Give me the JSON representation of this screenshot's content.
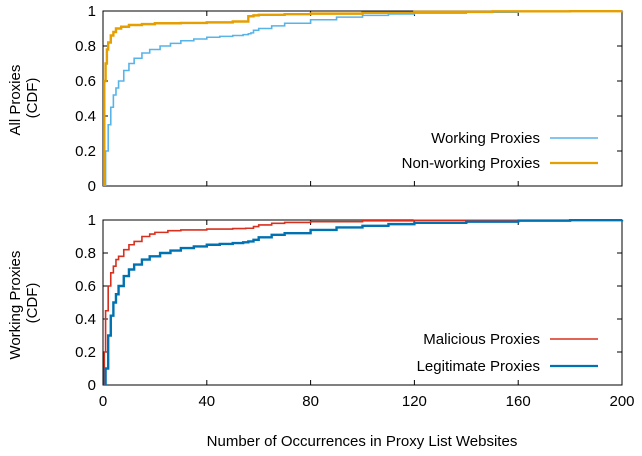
{
  "chart_data": [
    {
      "type": "line",
      "panel": "top",
      "xlabel": "",
      "ylabel_lines": [
        "All Proxies",
        "(CDF)"
      ],
      "xlim": [
        0,
        200
      ],
      "ylim": [
        0,
        1
      ],
      "yticks": [
        "0",
        "0.2",
        "0.4",
        "0.6",
        "0.8",
        "1"
      ],
      "xticks": [],
      "legend_position": "bottom-right",
      "series": [
        {
          "name": "Working Proxies",
          "color": "#56B4E9",
          "points": [
            [
              1,
              0
            ],
            [
              1,
              0.2
            ],
            [
              2,
              0.35
            ],
            [
              3,
              0.45
            ],
            [
              4,
              0.52
            ],
            [
              5,
              0.56
            ],
            [
              6,
              0.6
            ],
            [
              8,
              0.66
            ],
            [
              10,
              0.7
            ],
            [
              12,
              0.73
            ],
            [
              15,
              0.76
            ],
            [
              18,
              0.78
            ],
            [
              22,
              0.8
            ],
            [
              26,
              0.815
            ],
            [
              30,
              0.83
            ],
            [
              35,
              0.84
            ],
            [
              40,
              0.85
            ],
            [
              45,
              0.855
            ],
            [
              50,
              0.86
            ],
            [
              54,
              0.865
            ],
            [
              56,
              0.87
            ],
            [
              57,
              0.875
            ],
            [
              58,
              0.89
            ],
            [
              60,
              0.9
            ],
            [
              65,
              0.915
            ],
            [
              70,
              0.93
            ],
            [
              80,
              0.95
            ],
            [
              90,
              0.965
            ],
            [
              100,
              0.975
            ],
            [
              110,
              0.983
            ],
            [
              120,
              0.988
            ],
            [
              140,
              0.993
            ],
            [
              160,
              0.997
            ],
            [
              180,
              0.999
            ],
            [
              200,
              1.0
            ]
          ]
        },
        {
          "name": "Non-working Proxies",
          "color": "#E69F00",
          "points": [
            [
              0.5,
              0
            ],
            [
              0.5,
              0.6
            ],
            [
              1,
              0.7
            ],
            [
              1.5,
              0.78
            ],
            [
              2,
              0.82
            ],
            [
              3,
              0.86
            ],
            [
              4,
              0.88
            ],
            [
              5,
              0.9
            ],
            [
              7,
              0.91
            ],
            [
              10,
              0.92
            ],
            [
              15,
              0.925
            ],
            [
              20,
              0.93
            ],
            [
              30,
              0.932
            ],
            [
              40,
              0.935
            ],
            [
              50,
              0.94
            ],
            [
              55,
              0.94
            ],
            [
              56,
              0.97
            ],
            [
              58,
              0.975
            ],
            [
              60,
              0.978
            ],
            [
              70,
              0.982
            ],
            [
              80,
              0.985
            ],
            [
              100,
              0.99
            ],
            [
              120,
              0.995
            ],
            [
              150,
              0.998
            ],
            [
              180,
              0.999
            ],
            [
              200,
              1.0
            ]
          ]
        }
      ]
    },
    {
      "type": "line",
      "panel": "bottom",
      "xlabel": "Number of Occurrences in Proxy List Websites",
      "ylabel_lines": [
        "Working Proxies",
        "(CDF)"
      ],
      "xlim": [
        0,
        200
      ],
      "ylim": [
        0,
        1
      ],
      "yticks": [
        "0",
        "0.2",
        "0.4",
        "0.6",
        "0.8",
        "1"
      ],
      "xticks": [
        "0",
        "40",
        "80",
        "120",
        "160",
        "200"
      ],
      "legend_position": "bottom-right",
      "series": [
        {
          "name": "Malicious Proxies",
          "color": "#D7301F",
          "points": [
            [
              0.5,
              0
            ],
            [
              0.5,
              0.2
            ],
            [
              1,
              0.45
            ],
            [
              2,
              0.6
            ],
            [
              3,
              0.68
            ],
            [
              4,
              0.72
            ],
            [
              5,
              0.76
            ],
            [
              6,
              0.78
            ],
            [
              8,
              0.82
            ],
            [
              10,
              0.85
            ],
            [
              12,
              0.87
            ],
            [
              15,
              0.9
            ],
            [
              18,
              0.915
            ],
            [
              20,
              0.925
            ],
            [
              25,
              0.935
            ],
            [
              30,
              0.94
            ],
            [
              40,
              0.945
            ],
            [
              50,
              0.948
            ],
            [
              55,
              0.95
            ],
            [
              58,
              0.96
            ],
            [
              60,
              0.97
            ],
            [
              65,
              0.98
            ],
            [
              70,
              0.985
            ],
            [
              80,
              0.99
            ],
            [
              100,
              0.995
            ],
            [
              120,
              0.998
            ],
            [
              160,
              0.999
            ],
            [
              200,
              1.0
            ]
          ]
        },
        {
          "name": "Legitimate Proxies",
          "color": "#0072B2",
          "points": [
            [
              1,
              0
            ],
            [
              1,
              0.1
            ],
            [
              2,
              0.3
            ],
            [
              3,
              0.42
            ],
            [
              4,
              0.5
            ],
            [
              5,
              0.55
            ],
            [
              6,
              0.6
            ],
            [
              8,
              0.66
            ],
            [
              10,
              0.7
            ],
            [
              12,
              0.73
            ],
            [
              15,
              0.76
            ],
            [
              18,
              0.78
            ],
            [
              22,
              0.8
            ],
            [
              26,
              0.815
            ],
            [
              30,
              0.83
            ],
            [
              35,
              0.84
            ],
            [
              40,
              0.85
            ],
            [
              45,
              0.855
            ],
            [
              50,
              0.86
            ],
            [
              54,
              0.865
            ],
            [
              56,
              0.87
            ],
            [
              58,
              0.88
            ],
            [
              60,
              0.895
            ],
            [
              65,
              0.91
            ],
            [
              70,
              0.92
            ],
            [
              80,
              0.94
            ],
            [
              90,
              0.955
            ],
            [
              100,
              0.965
            ],
            [
              110,
              0.975
            ],
            [
              120,
              0.983
            ],
            [
              140,
              0.99
            ],
            [
              160,
              0.996
            ],
            [
              180,
              0.999
            ],
            [
              200,
              1.0
            ]
          ]
        }
      ]
    }
  ]
}
